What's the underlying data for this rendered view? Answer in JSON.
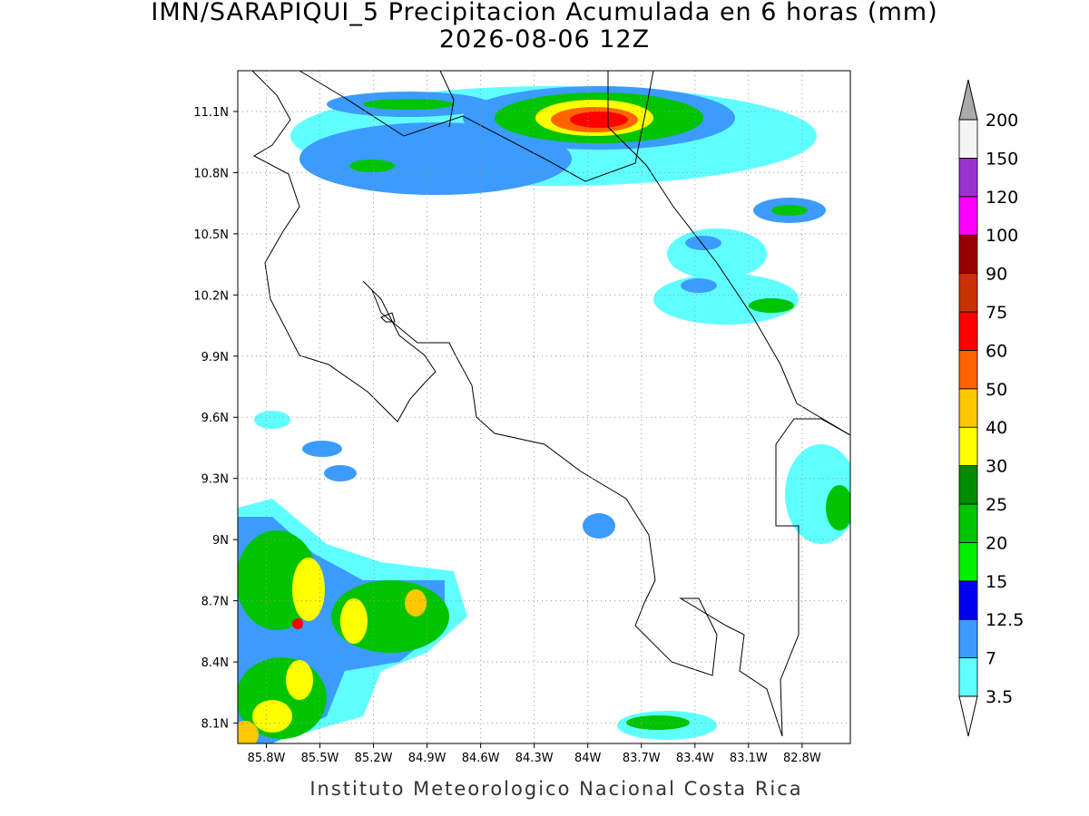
{
  "map": {
    "title": "IMN/SARAPIQUI_5 Precipitacion Acumulada en 6 horas (mm)",
    "subtitle": "2026-08-06 12Z",
    "footer": "Instituto Meteorologico Nacional Costa Rica",
    "xlim": [
      -85.96,
      -82.53
    ],
    "ylim": [
      8.0,
      11.3
    ],
    "xticks": [
      {
        "value": -85.8,
        "label": "85.8W"
      },
      {
        "value": -85.5,
        "label": "85.5W"
      },
      {
        "value": -85.2,
        "label": "85.2W"
      },
      {
        "value": -84.9,
        "label": "84.9W"
      },
      {
        "value": -84.6,
        "label": "84.6W"
      },
      {
        "value": -84.3,
        "label": "84.3W"
      },
      {
        "value": -84.0,
        "label": "84W"
      },
      {
        "value": -83.7,
        "label": "83.7W"
      },
      {
        "value": -83.4,
        "label": "83.4W"
      },
      {
        "value": -83.1,
        "label": "83.1W"
      },
      {
        "value": -82.8,
        "label": "82.8W"
      }
    ],
    "yticks": [
      {
        "value": 8.1,
        "label": "8.1N"
      },
      {
        "value": 8.4,
        "label": "8.4N"
      },
      {
        "value": 8.7,
        "label": "8.7N"
      },
      {
        "value": 9.0,
        "label": "9N"
      },
      {
        "value": 9.3,
        "label": "9.3N"
      },
      {
        "value": 9.6,
        "label": "9.6N"
      },
      {
        "value": 9.9,
        "label": "9.9N"
      },
      {
        "value": 10.2,
        "label": "10.2N"
      },
      {
        "value": 10.5,
        "label": "10.5N"
      },
      {
        "value": 10.8,
        "label": "10.8N"
      },
      {
        "value": 11.1,
        "label": "11.1N"
      }
    ],
    "grid": true,
    "colorbar": {
      "levels": [
        3.5,
        7,
        12.5,
        15,
        20,
        25,
        30,
        40,
        50,
        60,
        75,
        90,
        100,
        120,
        150,
        200
      ],
      "colors": [
        "#60ffff",
        "#3c9bff",
        "#0000f0",
        "#00f000",
        "#00c400",
        "#008c00",
        "#ffff00",
        "#ffc800",
        "#ff6400",
        "#ff0000",
        "#c83200",
        "#960000",
        "#ff00ff",
        "#9932cc",
        "#f4f4f4"
      ],
      "over_color": "#aaaaaa",
      "under_color": "#ffffff"
    }
  }
}
